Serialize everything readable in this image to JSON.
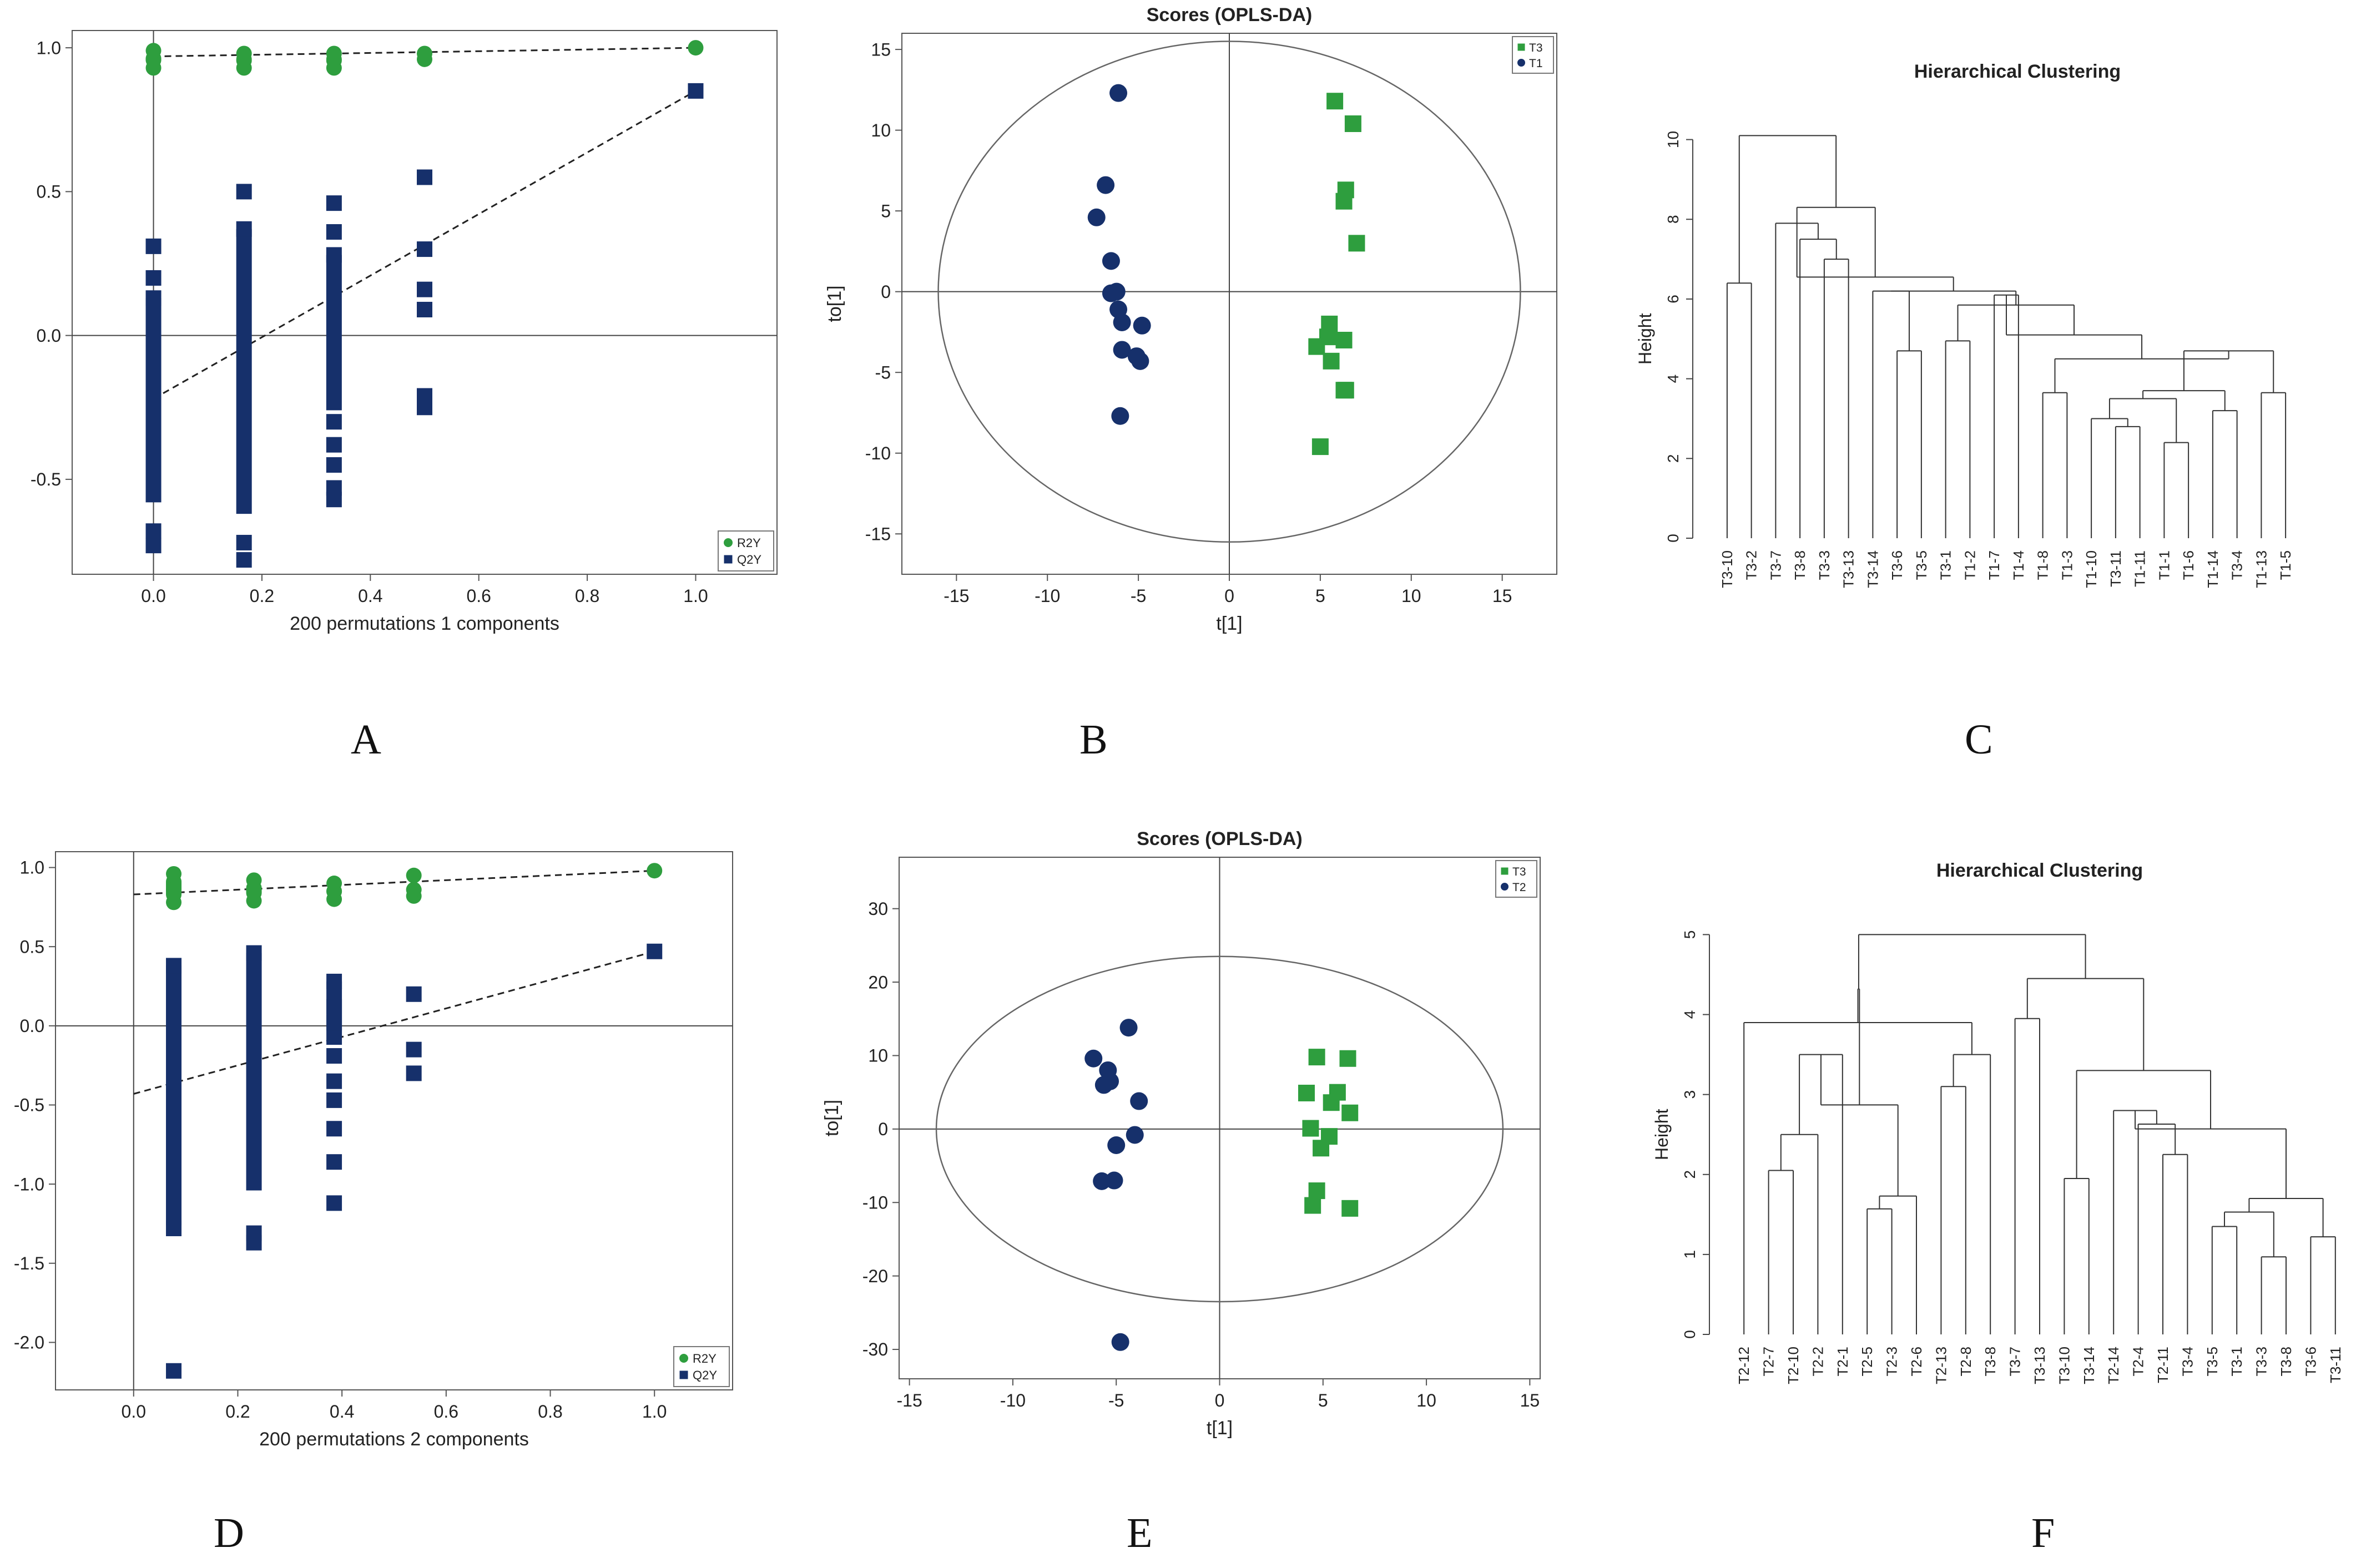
{
  "colors": {
    "green": "#2e9e3e",
    "navy": "#16306b",
    "axis": "#333333",
    "ellipse": "#666666"
  },
  "panel_labels": [
    "A",
    "B",
    "C",
    "D",
    "E",
    "F"
  ],
  "chart_data": [
    {
      "id": "A",
      "type": "scatter",
      "xlabel": "200 permutations 1 components",
      "xlim": [
        -0.15,
        1.15
      ],
      "ylim": [
        -0.83,
        1.06
      ],
      "xticks": [
        0.0,
        0.2,
        0.4,
        0.6,
        0.8,
        1.0
      ],
      "xtick_labels": [
        "0.0",
        "0.2",
        "0.4",
        "0.6",
        "0.8",
        "1.0"
      ],
      "yticks": [
        -0.5,
        0.0,
        0.5,
        1.0
      ],
      "ytick_labels": [
        "-0.5",
        "0.0",
        "0.5",
        "1.0"
      ],
      "legend": {
        "position": "bottom-right",
        "entries": [
          "R2Y",
          "Q2Y"
        ]
      },
      "r2y_points": [
        [
          0.0,
          0.93
        ],
        [
          0.0,
          0.96
        ],
        [
          0.0,
          0.99
        ],
        [
          0.167,
          0.93
        ],
        [
          0.167,
          0.96
        ],
        [
          0.167,
          0.98
        ],
        [
          0.333,
          0.93
        ],
        [
          0.333,
          0.96
        ],
        [
          0.333,
          0.98
        ],
        [
          0.5,
          0.96
        ],
        [
          0.5,
          0.98
        ],
        [
          1.0,
          1.0
        ]
      ],
      "q2y_points": [
        [
          0.0,
          -0.73
        ],
        [
          0.0,
          -0.68
        ],
        [
          0.0,
          0.31
        ],
        [
          0.0,
          0.2
        ],
        [
          0.0,
          0.13
        ],
        [
          0.167,
          -0.78
        ],
        [
          0.167,
          -0.72
        ],
        [
          0.167,
          0.5
        ],
        [
          0.167,
          0.37
        ],
        [
          0.333,
          -0.57
        ],
        [
          0.333,
          -0.53
        ],
        [
          0.333,
          -0.45
        ],
        [
          0.333,
          -0.38
        ],
        [
          0.333,
          -0.3
        ],
        [
          0.333,
          0.46
        ],
        [
          0.333,
          0.36
        ],
        [
          0.333,
          0.28
        ],
        [
          0.5,
          0.55
        ],
        [
          0.5,
          0.3
        ],
        [
          0.5,
          0.16
        ],
        [
          0.5,
          0.09
        ],
        [
          0.5,
          -0.21
        ],
        [
          0.5,
          -0.25
        ],
        [
          1.0,
          0.85
        ]
      ],
      "q2y_bars": [
        [
          0.0,
          -0.58,
          0.13
        ],
        [
          0.167,
          -0.62,
          0.37
        ],
        [
          0.333,
          -0.26,
          0.28
        ]
      ],
      "r2y_bars": [
        [
          0.0,
          0.93,
          0.99
        ],
        [
          0.167,
          0.93,
          0.98
        ],
        [
          0.333,
          0.93,
          0.98
        ]
      ],
      "r2y_trend": [
        [
          0.0,
          0.97
        ],
        [
          1.0,
          1.0
        ]
      ],
      "q2y_trend": [
        [
          0.0,
          -0.22
        ],
        [
          1.0,
          0.85
        ]
      ]
    },
    {
      "id": "B",
      "type": "scatter",
      "title": "Scores (OPLS-DA)",
      "xlabel": "t[1]",
      "ylabel": "to[1]",
      "xlim": [
        -18,
        18
      ],
      "ylim": [
        -17.5,
        16
      ],
      "xticks": [
        -15,
        -10,
        -5,
        0,
        5,
        10,
        15
      ],
      "xtick_labels": [
        "-15",
        "-10",
        "-5",
        "0",
        "5",
        "10",
        "15"
      ],
      "yticks": [
        -15,
        -10,
        -5,
        0,
        5,
        10,
        15
      ],
      "ytick_labels": [
        "-15",
        "-10",
        "-5",
        "0",
        "5",
        "10",
        "15"
      ],
      "ellipse": {
        "rx": 16,
        "ry": 15.5
      },
      "legend": {
        "position": "top-right",
        "entries": [
          "T3",
          "T1"
        ]
      },
      "series": [
        {
          "name": "T3",
          "marker": "square",
          "points": [
            [
              5.8,
              11.8
            ],
            [
              6.8,
              10.4
            ],
            [
              6.4,
              6.3
            ],
            [
              6.3,
              5.6
            ],
            [
              7.0,
              3.0
            ],
            [
              5.5,
              -2.0
            ],
            [
              5.4,
              -2.8
            ],
            [
              6.3,
              -3.0
            ],
            [
              4.8,
              -3.4
            ],
            [
              5.6,
              -4.3
            ],
            [
              6.4,
              -6.1
            ],
            [
              6.3,
              -6.1
            ],
            [
              5.0,
              -9.6
            ]
          ]
        },
        {
          "name": "T1",
          "marker": "circle",
          "points": [
            [
              -6.1,
              12.3
            ],
            [
              -6.8,
              6.6
            ],
            [
              -7.3,
              4.6
            ],
            [
              -6.5,
              1.9
            ],
            [
              -6.5,
              -0.1
            ],
            [
              -6.2,
              0.0
            ],
            [
              -6.1,
              -1.1
            ],
            [
              -5.9,
              -1.9
            ],
            [
              -4.8,
              -2.1
            ],
            [
              -5.9,
              -3.6
            ],
            [
              -5.1,
              -4.0
            ],
            [
              -4.9,
              -4.3
            ],
            [
              -6.0,
              -7.7
            ]
          ]
        }
      ]
    },
    {
      "id": "C",
      "type": "dendrogram",
      "title": "Hierarchical Clustering",
      "ylabel": "Height",
      "ylim": [
        0,
        10.3
      ],
      "yticks": [
        0,
        2,
        4,
        6,
        8,
        10
      ],
      "ytick_labels": [
        "0",
        "2",
        "4",
        "6",
        "8",
        "10"
      ],
      "leaves": [
        "T3-10",
        "T3-2",
        "T3-7",
        "T3-8",
        "T3-3",
        "T3-13",
        "T3-14",
        "T3-6",
        "T3-5",
        "T3-1",
        "T1-2",
        "T1-7",
        "T1-4",
        "T1-8",
        "T1-3",
        "T1-10",
        "T3-11",
        "T1-11",
        "T1-1",
        "T1-6",
        "T1-14",
        "T3-4",
        "T1-13",
        "T1-5"
      ],
      "merges": [
        [
          -1,
          -2,
          6.4
        ],
        [
          -5,
          -6,
          7.0
        ],
        [
          -4,
          2,
          7.5
        ],
        [
          -3,
          3,
          7.9
        ],
        [
          -8,
          -9,
          4.7
        ],
        [
          -7,
          5,
          6.2
        ],
        [
          -10,
          -11,
          4.95
        ],
        [
          -12,
          -13,
          6.1
        ],
        [
          -14,
          -15,
          3.65
        ],
        [
          -17,
          -18,
          2.8
        ],
        [
          -16,
          10,
          3.0
        ],
        [
          -19,
          -20,
          2.4
        ],
        [
          11,
          12,
          3.5
        ],
        [
          -21,
          -22,
          3.2
        ],
        [
          13,
          14,
          3.7
        ],
        [
          -23,
          -24,
          3.65
        ],
        [
          15,
          16,
          4.7
        ],
        [
          9,
          17,
          4.5
        ],
        [
          18,
          8,
          5.1
        ],
        [
          19,
          7,
          5.85
        ],
        [
          20,
          6,
          6.2
        ],
        [
          21,
          4,
          6.55
        ],
        [
          22,
          4,
          8.3
        ],
        [
          1,
          23,
          10.1
        ]
      ]
    },
    {
      "id": "D",
      "type": "scatter",
      "xlabel": "200 permutations 2 components",
      "xlim": [
        -0.15,
        1.15
      ],
      "ylim": [
        -2.3,
        1.1
      ],
      "xticks": [
        0.0,
        0.2,
        0.4,
        0.6,
        0.8,
        1.0
      ],
      "xtick_labels": [
        "0.0",
        "0.2",
        "0.4",
        "0.6",
        "0.8",
        "1.0"
      ],
      "yticks": [
        -2.0,
        -1.5,
        -1.0,
        -0.5,
        0.0,
        0.5,
        1.0
      ],
      "ytick_labels": [
        "-2.0",
        "-1.5",
        "-1.0",
        "-0.5",
        "0.0",
        "0.5",
        "1.0"
      ],
      "legend": {
        "position": "bottom-right",
        "entries": [
          "R2Y",
          "Q2Y"
        ]
      },
      "r2y_points": [
        [
          0.077,
          0.78
        ],
        [
          0.077,
          0.86
        ],
        [
          0.077,
          0.96
        ],
        [
          0.231,
          0.79
        ],
        [
          0.231,
          0.86
        ],
        [
          0.231,
          0.92
        ],
        [
          0.385,
          0.8
        ],
        [
          0.385,
          0.85
        ],
        [
          0.385,
          0.9
        ],
        [
          0.538,
          0.95
        ],
        [
          0.538,
          0.82
        ],
        [
          0.538,
          0.86
        ],
        [
          1.0,
          0.98
        ]
      ],
      "q2y_points": [
        [
          0.077,
          -2.18
        ],
        [
          0.077,
          -1.28
        ],
        [
          0.077,
          0.38
        ],
        [
          0.231,
          -1.37
        ],
        [
          0.231,
          -1.31
        ],
        [
          0.231,
          0.46
        ],
        [
          0.385,
          -1.12
        ],
        [
          0.385,
          -0.86
        ],
        [
          0.385,
          -0.65
        ],
        [
          0.385,
          -0.47
        ],
        [
          0.385,
          -0.35
        ],
        [
          0.385,
          -0.19
        ],
        [
          0.385,
          0.28
        ],
        [
          0.385,
          0.12
        ],
        [
          0.385,
          0.02
        ],
        [
          0.538,
          0.2
        ],
        [
          0.538,
          -0.15
        ],
        [
          0.538,
          -0.3
        ],
        [
          1.0,
          0.47
        ]
      ],
      "q2y_bars": [
        [
          0.077,
          -1.26,
          0.38
        ],
        [
          0.231,
          -1.04,
          0.46
        ],
        [
          0.385,
          -0.12,
          0.28
        ]
      ],
      "r2y_bars": [
        [
          0.077,
          0.78,
          0.96
        ],
        [
          0.231,
          0.79,
          0.92
        ],
        [
          0.385,
          0.8,
          0.9
        ]
      ],
      "r2y_trend": [
        [
          0.0,
          0.83
        ],
        [
          1.0,
          0.98
        ]
      ],
      "q2y_trend": [
        [
          0.0,
          -0.43
        ],
        [
          1.0,
          0.47
        ]
      ]
    },
    {
      "id": "E",
      "type": "scatter",
      "title": "Scores (OPLS-DA)",
      "xlabel": "t[1]",
      "ylabel": "to[1]",
      "xlim": [
        -15.5,
        15.5
      ],
      "ylim": [
        -34,
        37
      ],
      "xticks": [
        -15,
        -10,
        -5,
        0,
        5,
        10,
        15
      ],
      "xtick_labels": [
        "-15",
        "-10",
        "-5",
        "0",
        "5",
        "10",
        "15"
      ],
      "yticks": [
        -30,
        -20,
        -10,
        0,
        10,
        20,
        30
      ],
      "ytick_labels": [
        "-30",
        "-20",
        "-10",
        "0",
        "10",
        "20",
        "30"
      ],
      "ellipse": {
        "rx": 13.7,
        "ry": 23.5
      },
      "legend": {
        "position": "top-right",
        "entries": [
          "T3",
          "T2"
        ]
      },
      "series": [
        {
          "name": "T3",
          "marker": "square",
          "points": [
            [
              4.7,
              9.8
            ],
            [
              6.2,
              9.6
            ],
            [
              4.2,
              4.9
            ],
            [
              5.7,
              5.0
            ],
            [
              5.4,
              3.6
            ],
            [
              6.3,
              2.2
            ],
            [
              4.4,
              0.1
            ],
            [
              5.3,
              -1.0
            ],
            [
              4.9,
              -2.6
            ],
            [
              4.7,
              -8.4
            ],
            [
              4.5,
              -10.4
            ],
            [
              6.3,
              -10.8
            ]
          ]
        },
        {
          "name": "T2",
          "marker": "circle",
          "points": [
            [
              -4.4,
              13.8
            ],
            [
              -6.1,
              9.6
            ],
            [
              -5.4,
              8.0
            ],
            [
              -5.3,
              6.5
            ],
            [
              -5.6,
              6.0
            ],
            [
              -3.9,
              3.8
            ],
            [
              -4.1,
              -0.8
            ],
            [
              -5.0,
              -2.2
            ],
            [
              -5.7,
              -7.1
            ],
            [
              -5.1,
              -7.0
            ],
            [
              -4.8,
              -29.0
            ]
          ]
        }
      ]
    },
    {
      "id": "F",
      "type": "dendrogram",
      "title": "Hierarchical Clustering",
      "ylabel": "Height",
      "ylim": [
        0,
        5.1
      ],
      "yticks": [
        0,
        1,
        2,
        3,
        4,
        5
      ],
      "ytick_labels": [
        "0",
        "1",
        "2",
        "3",
        "4",
        "5"
      ],
      "leaves": [
        "T2-12",
        "T2-7",
        "T2-10",
        "T2-2",
        "T2-1",
        "T2-5",
        "T2-3",
        "T2-6",
        "T2-13",
        "T2-8",
        "T3-8",
        "T3-7",
        "T3-13",
        "T3-10",
        "T3-14",
        "T2-14",
        "T2-4",
        "T2-11",
        "T3-4",
        "T3-5",
        "T3-1",
        "T3-3",
        "T3-8",
        "T3-6",
        "T3-11"
      ],
      "merges": [
        [
          -2,
          -3,
          2.05
        ],
        [
          1,
          -4,
          2.5
        ],
        [
          -6,
          -7,
          1.57
        ],
        [
          2,
          -5,
          3.5
        ],
        [
          -8,
          3,
          1.73
        ],
        [
          -9,
          -10,
          3.1
        ],
        [
          -11,
          6,
          3.5
        ],
        [
          4,
          5,
          2.87
        ],
        [
          -1,
          7,
          3.9
        ],
        [
          -12,
          -13,
          3.95
        ],
        [
          -14,
          -15,
          1.95
        ],
        [
          -18,
          -19,
          2.25
        ],
        [
          -17,
          12,
          2.63
        ],
        [
          -16,
          13,
          2.8
        ],
        [
          -20,
          -21,
          1.35
        ],
        [
          -22,
          -23,
          0.97
        ],
        [
          15,
          16,
          1.53
        ],
        [
          -24,
          -25,
          1.22
        ],
        [
          17,
          18,
          1.7
        ],
        [
          14,
          19,
          2.57
        ],
        [
          11,
          20,
          3.3
        ],
        [
          10,
          21,
          4.45
        ],
        [
          9,
          8,
          4.32
        ],
        [
          23,
          22,
          5.0
        ]
      ]
    }
  ]
}
